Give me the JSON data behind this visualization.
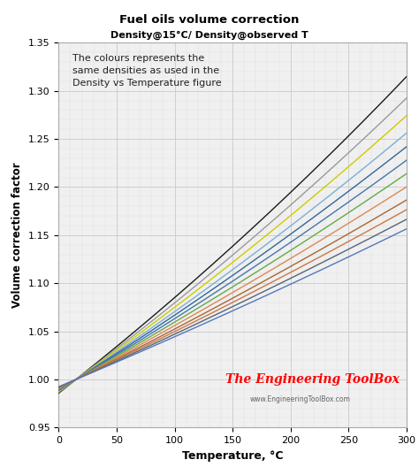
{
  "title": "Fuel oils volume correction",
  "subtitle": "Density@15°C/ Density@observed T",
  "xlabel": "Temperature, °C",
  "ylabel": "Volume correction factor",
  "xlim": [
    0,
    300
  ],
  "ylim": [
    0.95,
    1.35
  ],
  "xticks": [
    0,
    50,
    100,
    150,
    200,
    250,
    300
  ],
  "yticks": [
    0.95,
    1.0,
    1.05,
    1.1,
    1.15,
    1.2,
    1.25,
    1.3,
    1.35
  ],
  "annotation": "The colours represents the\nsame densities as used in the\nDensity vs Temperature figure",
  "watermark1": "The Engineering ToolBox",
  "watermark2": "www.EngineeringToolBox.com",
  "bg_color": "#f0f0f0",
  "line_colors": [
    "#1a1a1a",
    "#999999",
    "#cccc00",
    "#7bafd4",
    "#336699",
    "#4477aa",
    "#66aa44",
    "#dd8855",
    "#aa6633",
    "#cc7744",
    "#556677",
    "#5577bb"
  ],
  "alpha_coeffs": [
    0.00096,
    0.0009,
    0.00085,
    0.0008,
    0.00076,
    0.00072,
    0.00068,
    0.00064,
    0.0006,
    0.00057,
    0.00054,
    0.00051
  ]
}
